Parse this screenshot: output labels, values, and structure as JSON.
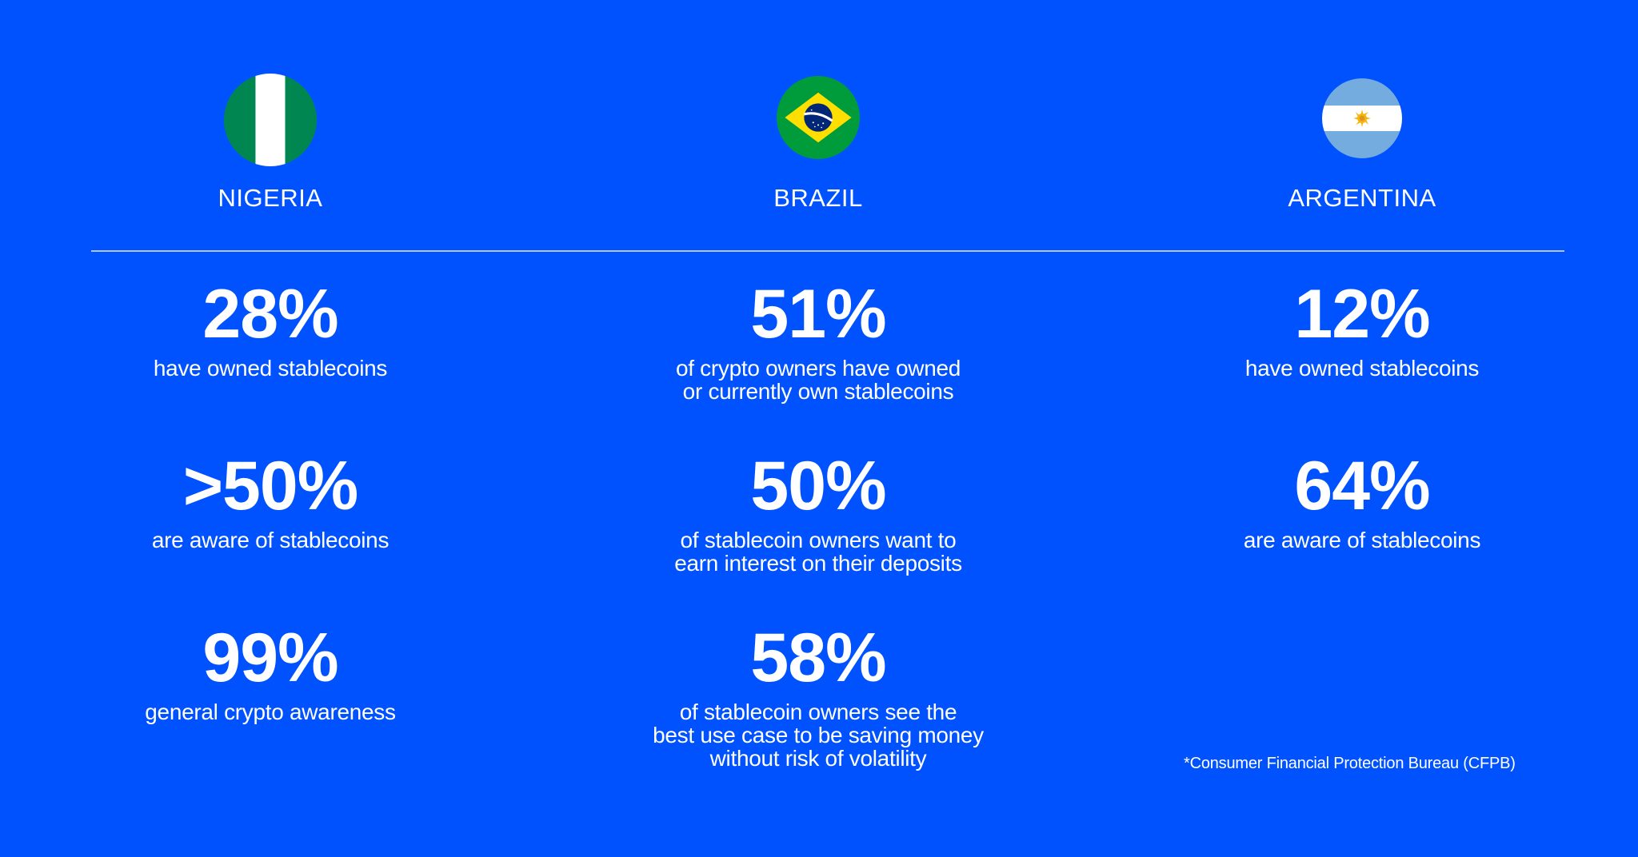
{
  "background_color": "#0052ff",
  "columns": [
    {
      "country": "NIGERIA",
      "flag_icon": "nigeria-flag-icon",
      "stats": [
        {
          "value": "28%",
          "desc": "have owned stablecoins"
        },
        {
          "value": ">50%",
          "desc": "are aware of stablecoins"
        },
        {
          "value": "99%",
          "desc": "general crypto awareness"
        }
      ]
    },
    {
      "country": "BRAZIL",
      "flag_icon": "brazil-flag-icon",
      "stats": [
        {
          "value": "51%",
          "desc": "of crypto owners have owned\nor currently own stablecoins"
        },
        {
          "value": "50%",
          "desc": "of stablecoin owners want to\nearn interest on their deposits"
        },
        {
          "value": "58%",
          "desc": "of stablecoin owners see the\nbest use case to be saving money\nwithout risk of volatility"
        }
      ]
    },
    {
      "country": "ARGENTINA",
      "flag_icon": "argentina-flag-icon",
      "stats": [
        {
          "value": "12%",
          "desc": "have owned stablecoins"
        },
        {
          "value": "64%",
          "desc": "are aware of stablecoins"
        }
      ]
    }
  ],
  "footnote": "*Consumer Financial Protection Bureau (CFPB)"
}
